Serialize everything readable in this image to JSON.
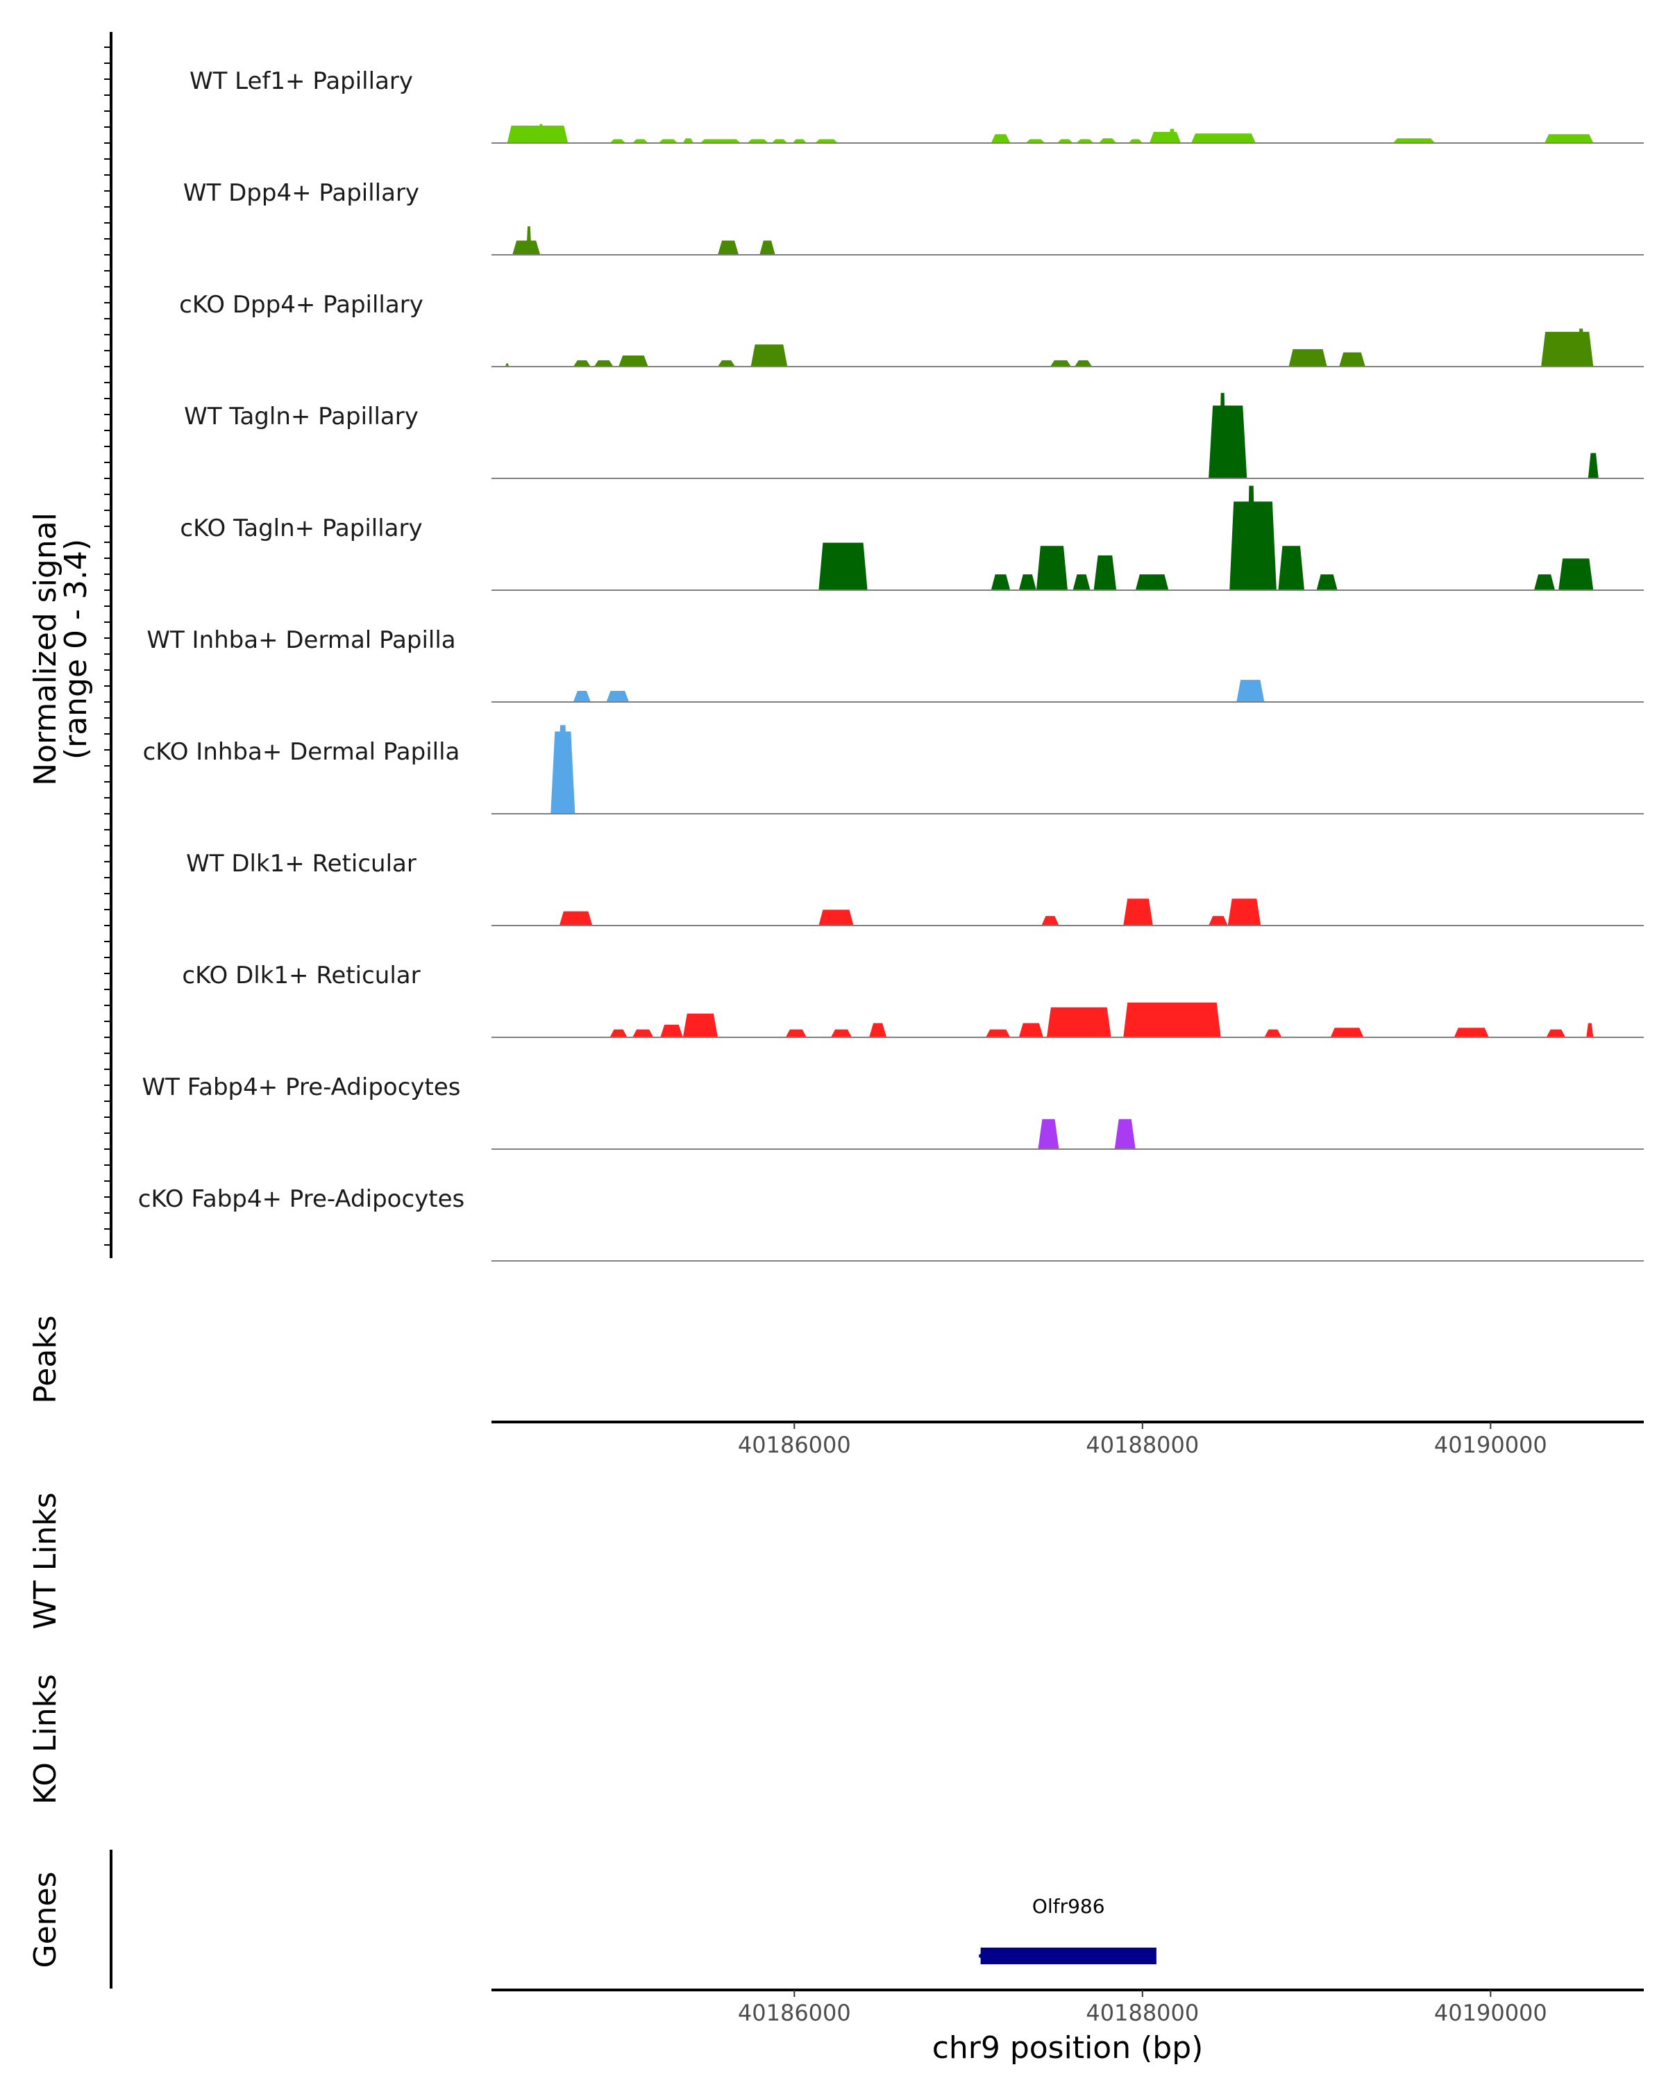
{
  "chart_data": {
    "type": "area",
    "title": "",
    "chromosome": "chr9",
    "xlabel": "chr9 position (bp)",
    "xlim": [
      40184260,
      40190880
    ],
    "x_ticks": [
      40186000,
      40188000,
      40190000
    ],
    "x_tick_labels": [
      "40186000",
      "40188000",
      "40190000"
    ],
    "coverage_panel": {
      "ylabel": "Normalized signal",
      "ylabel_range": "(range 0 - 3.4)",
      "ylim": [
        0,
        3.4
      ],
      "series": [
        {
          "name": "WT Lef1+ Papillary",
          "color": "#66cc00",
          "peaks": [
            [
              40184350,
              40184700,
              0.55
            ],
            [
              40184530,
              40184560,
              0.6
            ],
            [
              40184940,
              40185030,
              0.12
            ],
            [
              40185070,
              40185160,
              0.12
            ],
            [
              40185220,
              40185330,
              0.12
            ],
            [
              40185360,
              40185420,
              0.15
            ],
            [
              40185460,
              40185690,
              0.12
            ],
            [
              40185730,
              40185850,
              0.12
            ],
            [
              40185870,
              40185960,
              0.12
            ],
            [
              40185990,
              40186070,
              0.12
            ],
            [
              40186120,
              40186250,
              0.12
            ],
            [
              40187130,
              40187240,
              0.28
            ],
            [
              40187330,
              40187440,
              0.12
            ],
            [
              40187510,
              40187600,
              0.12
            ],
            [
              40187620,
              40187720,
              0.12
            ],
            [
              40187750,
              40187850,
              0.15
            ],
            [
              40187920,
              40188000,
              0.12
            ],
            [
              40188040,
              40188220,
              0.35
            ],
            [
              40188150,
              40188190,
              0.45
            ],
            [
              40188280,
              40188650,
              0.3
            ],
            [
              40189440,
              40189680,
              0.15
            ],
            [
              40190310,
              40190590,
              0.28
            ]
          ]
        },
        {
          "name": "WT Dpp4+ Papillary",
          "color": "#4a8a00",
          "peaks": [
            [
              40184380,
              40184540,
              0.45
            ],
            [
              40184460,
              40184490,
              0.9
            ],
            [
              40185560,
              40185680,
              0.45
            ],
            [
              40185800,
              40185890,
              0.45
            ]
          ]
        },
        {
          "name": "cKO Dpp4+ Papillary",
          "color": "#4a8a00",
          "peaks": [
            [
              40184340,
              40184360,
              0.1
            ],
            [
              40184730,
              40184830,
              0.2
            ],
            [
              40184850,
              40184960,
              0.2
            ],
            [
              40184990,
              40185160,
              0.35
            ],
            [
              40185560,
              40185660,
              0.2
            ],
            [
              40185750,
              40185960,
              0.7
            ],
            [
              40187470,
              40187590,
              0.2
            ],
            [
              40187610,
              40187710,
              0.2
            ],
            [
              40188840,
              40189060,
              0.55
            ],
            [
              40189130,
              40189280,
              0.45
            ],
            [
              40190290,
              40190590,
              1.1
            ],
            [
              40190500,
              40190540,
              1.2
            ]
          ]
        },
        {
          "name": "WT Tagln+ Papillary",
          "color": "#006400",
          "peaks": [
            [
              40188380,
              40188600,
              2.3
            ],
            [
              40188440,
              40188480,
              2.7
            ],
            [
              40190560,
              40190620,
              0.8
            ]
          ]
        },
        {
          "name": "cKO Tagln+ Papillary",
          "color": "#006400",
          "peaks": [
            [
              40186140,
              40186420,
              1.5
            ],
            [
              40187130,
              40187240,
              0.5
            ],
            [
              40187290,
              40187390,
              0.5
            ],
            [
              40187390,
              40187570,
              1.4
            ],
            [
              40187600,
              40187700,
              0.5
            ],
            [
              40187720,
              40187850,
              1.1
            ],
            [
              40187960,
              40188150,
              0.5
            ],
            [
              40188500,
              40188770,
              2.8
            ],
            [
              40188600,
              40188650,
              3.3
            ],
            [
              40188780,
              40188930,
              1.4
            ],
            [
              40189000,
              40189120,
              0.5
            ],
            [
              40190250,
              40190370,
              0.5
            ],
            [
              40190390,
              40190590,
              1.0
            ]
          ]
        },
        {
          "name": "WT Inhba+ Dermal Papilla",
          "color": "#56a6e8",
          "peaks": [
            [
              40184730,
              40184830,
              0.35
            ],
            [
              40184920,
              40185050,
              0.35
            ],
            [
              40188540,
              40188700,
              0.7
            ]
          ]
        },
        {
          "name": "cKO Inhba+ Dermal Papilla",
          "color": "#56a6e8",
          "peaks": [
            [
              40184600,
              40184740,
              2.6
            ],
            [
              40184640,
              40184700,
              2.8
            ]
          ]
        },
        {
          "name": "WT Dlk1+ Reticular",
          "color": "#ff2020",
          "peaks": [
            [
              40184650,
              40184840,
              0.45
            ],
            [
              40186140,
              40186340,
              0.5
            ],
            [
              40187420,
              40187520,
              0.3
            ],
            [
              40187890,
              40188060,
              0.85
            ],
            [
              40188380,
              40188490,
              0.3
            ],
            [
              40188490,
              40188680,
              0.85
            ]
          ]
        },
        {
          "name": "cKO Dlk1+ Reticular",
          "color": "#ff2020",
          "peaks": [
            [
              40184940,
              40185040,
              0.25
            ],
            [
              40185070,
              40185190,
              0.25
            ],
            [
              40185230,
              40185360,
              0.4
            ],
            [
              40185360,
              40185560,
              0.75
            ],
            [
              40185950,
              40186070,
              0.25
            ],
            [
              40186210,
              40186330,
              0.25
            ],
            [
              40186430,
              40186530,
              0.45
            ],
            [
              40187100,
              40187240,
              0.25
            ],
            [
              40187290,
              40187430,
              0.45
            ],
            [
              40187450,
              40187820,
              0.95
            ],
            [
              40187890,
              40188450,
              1.1
            ],
            [
              40188700,
              40188800,
              0.25
            ],
            [
              40189080,
              40189270,
              0.3
            ],
            [
              40189790,
              40189990,
              0.3
            ],
            [
              40190320,
              40190430,
              0.25
            ],
            [
              40190550,
              40190590,
              0.45
            ]
          ]
        },
        {
          "name": "WT Fabp4+ Pre-Adipocytes",
          "color": "#a93cf2",
          "peaks": [
            [
              40187400,
              40187520,
              0.95
            ],
            [
              40187840,
              40187960,
              0.95
            ]
          ]
        },
        {
          "name": "cKO Fabp4+ Pre-Adipocytes",
          "color": "#a93cf2",
          "peaks": []
        }
      ]
    },
    "peaks_panel": {
      "ylabel": "Peaks",
      "peaks": []
    },
    "links_panels": [
      {
        "ylabel": "WT Links",
        "links": []
      },
      {
        "ylabel": "KO Links",
        "links": []
      }
    ],
    "genes_panel": {
      "ylabel": "Genes",
      "genes": [
        {
          "name": "Olfr986",
          "start": 40187070,
          "end": 40188080,
          "strand": "-",
          "color": "#00008b"
        }
      ]
    }
  }
}
